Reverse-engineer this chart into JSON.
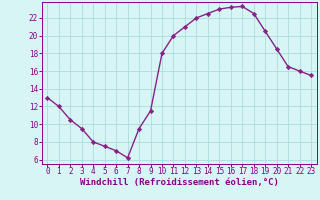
{
  "x": [
    0,
    1,
    2,
    3,
    4,
    5,
    6,
    7,
    8,
    9,
    10,
    11,
    12,
    13,
    14,
    15,
    16,
    17,
    18,
    19,
    20,
    21,
    22,
    23
  ],
  "y": [
    13,
    12,
    10.5,
    9.5,
    8,
    7.5,
    7,
    6.2,
    9.5,
    11.5,
    18,
    20,
    21,
    22,
    22.5,
    23,
    23.2,
    23.3,
    22.5,
    20.5,
    18.5,
    16.5,
    16,
    15.5
  ],
  "line_color": "#882288",
  "marker": "D",
  "marker_size": 2.2,
  "bg_color": "#d8f5f5",
  "grid_color": "#aadddd",
  "xlabel": "Windchill (Refroidissement éolien,°C)",
  "xlim": [
    -0.5,
    23.5
  ],
  "ylim": [
    5.5,
    23.8
  ],
  "yticks": [
    6,
    8,
    10,
    12,
    14,
    16,
    18,
    20,
    22
  ],
  "xticks": [
    0,
    1,
    2,
    3,
    4,
    5,
    6,
    7,
    8,
    9,
    10,
    11,
    12,
    13,
    14,
    15,
    16,
    17,
    18,
    19,
    20,
    21,
    22,
    23
  ],
  "tick_color": "#880088",
  "label_color": "#880088",
  "font_size_xlabel": 6.5,
  "font_size_ticks": 5.5
}
